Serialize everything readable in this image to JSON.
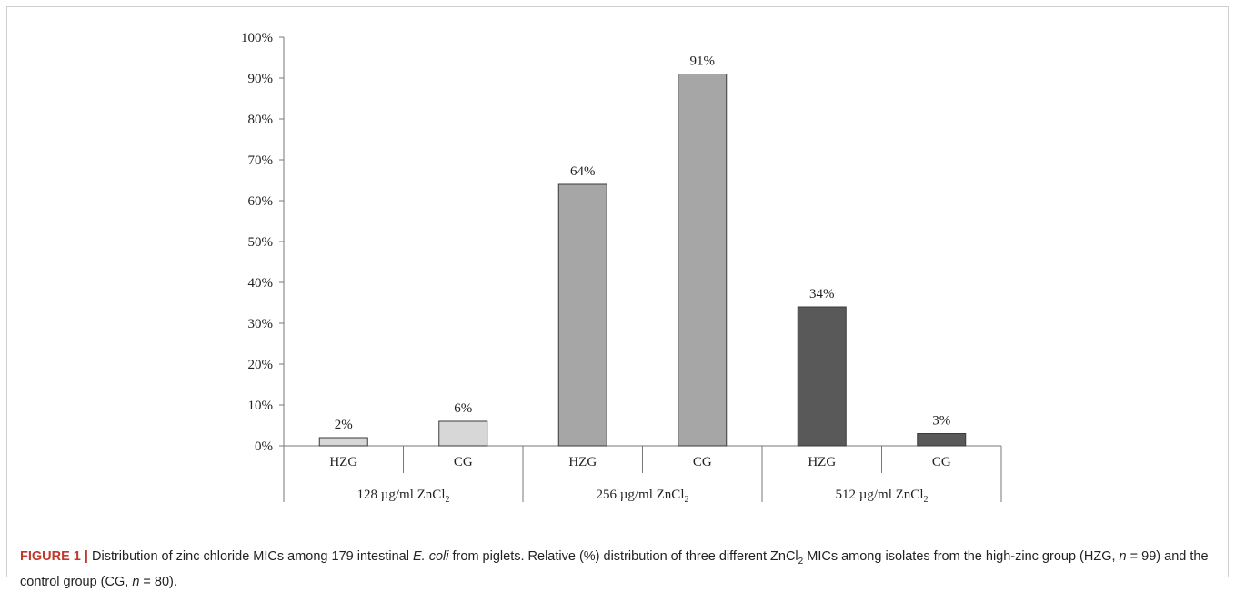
{
  "chart_data": {
    "type": "bar",
    "groups": [
      {
        "label_main": "128 µg/ml ZnCl",
        "label_sub": "2",
        "color": "#d7d7d7"
      },
      {
        "label_main": "256 µg/ml ZnCl",
        "label_sub": "2",
        "color": "#a6a6a6"
      },
      {
        "label_main": "512 µg/ml ZnCl",
        "label_sub": "2",
        "color": "#595959"
      }
    ],
    "categories": [
      "HZG",
      "CG",
      "HZG",
      "CG",
      "HZG",
      "CG"
    ],
    "values": [
      2,
      6,
      64,
      91,
      34,
      3
    ],
    "data_labels": [
      "2%",
      "6%",
      "64%",
      "91%",
      "34%",
      "3%"
    ],
    "ylim": [
      0,
      100
    ],
    "yticks": [
      "0%",
      "10%",
      "20%",
      "30%",
      "40%",
      "50%",
      "60%",
      "70%",
      "80%",
      "90%",
      "100%"
    ],
    "grid": false,
    "title": "",
    "xlabel": "",
    "ylabel": ""
  },
  "caption": {
    "figure_label": "FIGURE 1 |",
    "t1": " Distribution of zinc chloride MICs among 179 intestinal ",
    "t1_italic": "E. coli",
    "t2": " from piglets. Relative (%) distribution of three different ZnCl",
    "t2_sub": "2",
    "t3": " MICs among isolates from the high-zinc group (HZG, ",
    "n1": "n",
    "t4": " = 99) and the control group (CG, ",
    "n2": "n",
    "t5": " = 80)."
  }
}
